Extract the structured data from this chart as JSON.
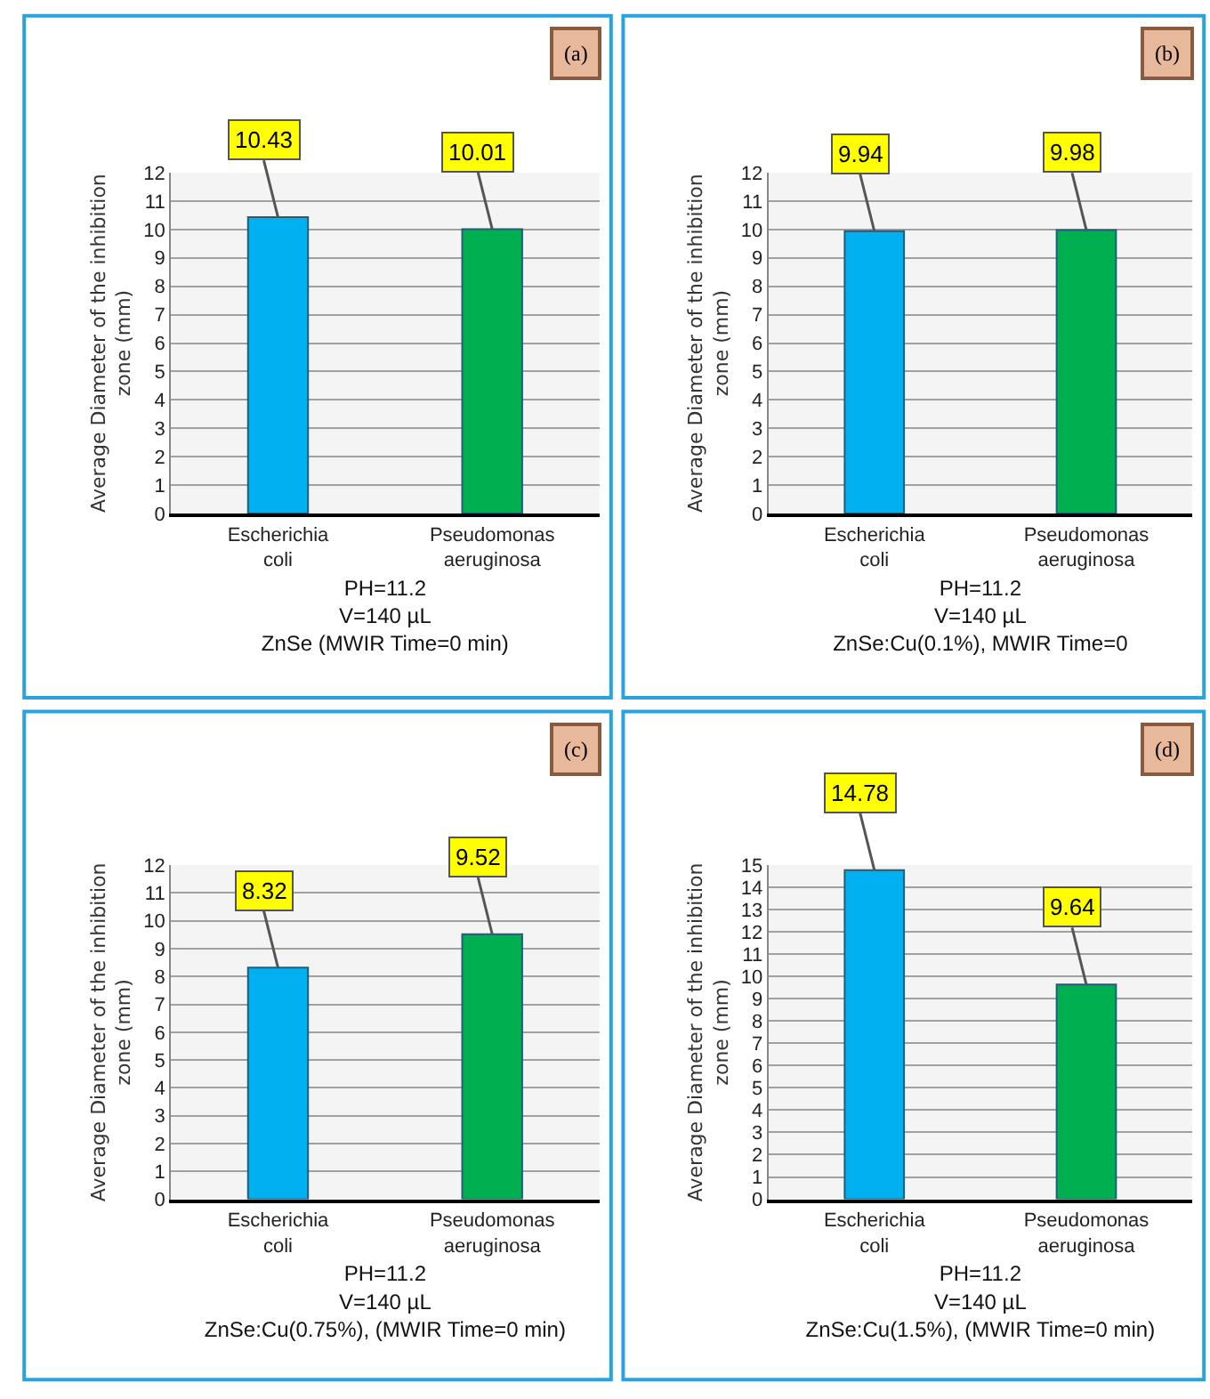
{
  "chart_data": [
    {
      "type": "bar",
      "title": "(a)",
      "ylabel": "Average Diameter of the inhibition zone (mm)",
      "xlabel": "PH=11.2\nV=140 µL\nZnSe (MWIR Time=0 min)",
      "categories": [
        "Escherichia coli",
        "Pseudomonas aeruginosa"
      ],
      "values": [
        10.43,
        10.01
      ],
      "colors": [
        "#00b0f0",
        "#00b050"
      ],
      "ylim": [
        0,
        12
      ],
      "yticks": [
        0,
        1,
        2,
        3,
        4,
        5,
        6,
        7,
        8,
        9,
        10,
        11,
        12
      ],
      "grid": "y",
      "data_labels": true
    },
    {
      "type": "bar",
      "title": "(b)",
      "ylabel": "Average Diameter of the inhibition zone (mm)",
      "xlabel": "PH=11.2\nV=140 µL\nZnSe:Cu(0.1%), MWIR Time=0",
      "categories": [
        "Escherichia coli",
        "Pseudomonas aeruginosa"
      ],
      "values": [
        9.94,
        9.98
      ],
      "colors": [
        "#00b0f0",
        "#00b050"
      ],
      "ylim": [
        0,
        12
      ],
      "yticks": [
        0,
        1,
        2,
        3,
        4,
        5,
        6,
        7,
        8,
        9,
        10,
        11,
        12
      ],
      "grid": "y",
      "data_labels": true
    },
    {
      "type": "bar",
      "title": "(c)",
      "ylabel": "Average Diameter of the inhibition zone (mm)",
      "xlabel": "PH=11.2\nV=140 µL\nZnSe:Cu(0.75%), (MWIR Time=0 min)",
      "categories": [
        "Escherichia coli",
        "Pseudomonas aeruginosa"
      ],
      "values": [
        8.32,
        9.52
      ],
      "colors": [
        "#00b0f0",
        "#00b050"
      ],
      "ylim": [
        0,
        12
      ],
      "yticks": [
        0,
        1,
        2,
        3,
        4,
        5,
        6,
        7,
        8,
        9,
        10,
        11,
        12
      ],
      "grid": "y",
      "data_labels": true
    },
    {
      "type": "bar",
      "title": "(d)",
      "ylabel": "Average Diameter of the inhibition zone (mm)",
      "xlabel": "PH=11.2\nV=140 µL\nZnSe:Cu(1.5%), (MWIR Time=0 min)",
      "categories": [
        "Escherichia coli",
        "Pseudomonas aeruginosa"
      ],
      "values": [
        14.78,
        9.64
      ],
      "colors": [
        "#00b0f0",
        "#00b050"
      ],
      "ylim": [
        0,
        15
      ],
      "yticks": [
        0,
        1,
        2,
        3,
        4,
        5,
        6,
        7,
        8,
        9,
        10,
        11,
        12,
        13,
        14,
        15
      ],
      "grid": "y",
      "data_labels": true
    }
  ]
}
